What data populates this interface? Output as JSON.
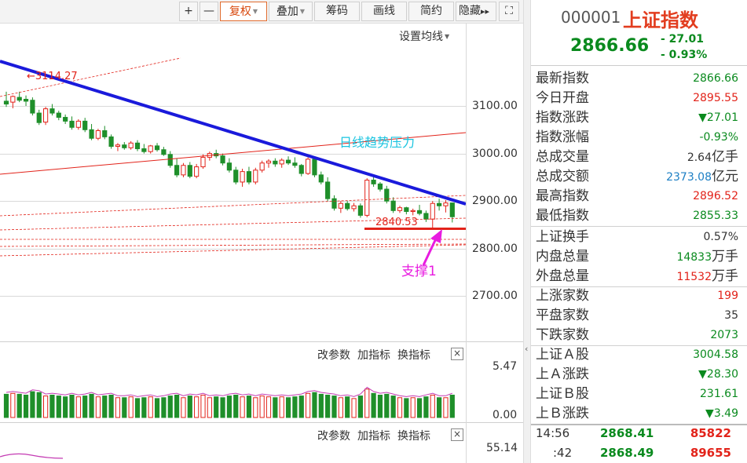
{
  "toolbar": {
    "zoom_in": "+",
    "zoom_out": "—",
    "adjust": "复权",
    "overlay": "叠加",
    "chips": "筹码",
    "draw": "画线",
    "simple": "简约",
    "hide": "隐藏",
    "more": "▸▸",
    "fullscreen": "⛶"
  },
  "chart": {
    "settings_ma": "设置均线",
    "price_axis": [
      "3100.00",
      "3000.00",
      "2900.00",
      "2800.00",
      "2700.00"
    ],
    "volume_axis": [
      "5.47",
      "0.00"
    ],
    "indicator_axis": [
      "55.14"
    ],
    "annotations": {
      "high_label": "3114.27",
      "trend_label": "日线趋势压力",
      "support_value": "2840.53",
      "support_label": "支撑1"
    },
    "colors": {
      "up": "#e2231a",
      "down": "#1f8f2a",
      "trendline": "#1a1adb",
      "resistance": "#e2231a",
      "support_arrow": "#e81be0",
      "trend_text": "#19c4e0"
    },
    "sub_tools": {
      "params": "改参数",
      "add_indicator": "加指标",
      "switch_indicator": "换指标",
      "close": "×"
    }
  },
  "chart_data": {
    "type": "candlestick",
    "xlabel": "",
    "ylabel": "",
    "ylim": [
      2640,
      3200
    ],
    "support_level": 2840.53,
    "candles": [
      {
        "o": 3110,
        "h": 3130,
        "l": 3098,
        "c": 3104
      },
      {
        "o": 3108,
        "h": 3122,
        "l": 3095,
        "c": 3120
      },
      {
        "o": 3118,
        "h": 3130,
        "l": 3108,
        "c": 3112
      },
      {
        "o": 3114,
        "h": 3122,
        "l": 3100,
        "c": 3110
      },
      {
        "o": 3112,
        "h": 3118,
        "l": 3080,
        "c": 3085
      },
      {
        "o": 3085,
        "h": 3092,
        "l": 3060,
        "c": 3065
      },
      {
        "o": 3066,
        "h": 3098,
        "l": 3060,
        "c": 3094
      },
      {
        "o": 3094,
        "h": 3104,
        "l": 3080,
        "c": 3085
      },
      {
        "o": 3085,
        "h": 3090,
        "l": 3070,
        "c": 3076
      },
      {
        "o": 3076,
        "h": 3082,
        "l": 3062,
        "c": 3068
      },
      {
        "o": 3068,
        "h": 3078,
        "l": 3050,
        "c": 3055
      },
      {
        "o": 3055,
        "h": 3072,
        "l": 3050,
        "c": 3068
      },
      {
        "o": 3068,
        "h": 3075,
        "l": 3045,
        "c": 3050
      },
      {
        "o": 3050,
        "h": 3062,
        "l": 3028,
        "c": 3032
      },
      {
        "o": 3032,
        "h": 3052,
        "l": 3028,
        "c": 3048
      },
      {
        "o": 3048,
        "h": 3058,
        "l": 3030,
        "c": 3035
      },
      {
        "o": 3035,
        "h": 3040,
        "l": 3010,
        "c": 3015
      },
      {
        "o": 3015,
        "h": 3022,
        "l": 3005,
        "c": 3018
      },
      {
        "o": 3018,
        "h": 3024,
        "l": 3008,
        "c": 3012
      },
      {
        "o": 3012,
        "h": 3026,
        "l": 3008,
        "c": 3022
      },
      {
        "o": 3022,
        "h": 3028,
        "l": 3005,
        "c": 3010
      },
      {
        "o": 3010,
        "h": 3020,
        "l": 3000,
        "c": 3004
      },
      {
        "o": 3004,
        "h": 3018,
        "l": 3000,
        "c": 3016
      },
      {
        "o": 3016,
        "h": 3022,
        "l": 3004,
        "c": 3008
      },
      {
        "o": 3008,
        "h": 3014,
        "l": 2995,
        "c": 2998
      },
      {
        "o": 2998,
        "h": 3005,
        "l": 2970,
        "c": 2975
      },
      {
        "o": 2975,
        "h": 2990,
        "l": 2950,
        "c": 2955
      },
      {
        "o": 2955,
        "h": 2980,
        "l": 2950,
        "c": 2975
      },
      {
        "o": 2975,
        "h": 2982,
        "l": 2948,
        "c": 2952
      },
      {
        "o": 2952,
        "h": 2978,
        "l": 2948,
        "c": 2972
      },
      {
        "o": 2972,
        "h": 2998,
        "l": 2968,
        "c": 2992
      },
      {
        "o": 2992,
        "h": 3004,
        "l": 2985,
        "c": 3000
      },
      {
        "o": 3000,
        "h": 3008,
        "l": 2990,
        "c": 2995
      },
      {
        "o": 2995,
        "h": 3000,
        "l": 2975,
        "c": 2980
      },
      {
        "o": 2980,
        "h": 2990,
        "l": 2960,
        "c": 2965
      },
      {
        "o": 2965,
        "h": 2972,
        "l": 2935,
        "c": 2940
      },
      {
        "o": 2940,
        "h": 2968,
        "l": 2930,
        "c": 2962
      },
      {
        "o": 2962,
        "h": 2972,
        "l": 2935,
        "c": 2940
      },
      {
        "o": 2940,
        "h": 2970,
        "l": 2935,
        "c": 2965
      },
      {
        "o": 2965,
        "h": 2985,
        "l": 2960,
        "c": 2980
      },
      {
        "o": 2980,
        "h": 2988,
        "l": 2970,
        "c": 2984
      },
      {
        "o": 2984,
        "h": 2990,
        "l": 2972,
        "c": 2978
      },
      {
        "o": 2978,
        "h": 2990,
        "l": 2970,
        "c": 2986
      },
      {
        "o": 2986,
        "h": 2994,
        "l": 2976,
        "c": 2980
      },
      {
        "o": 2980,
        "h": 2992,
        "l": 2970,
        "c": 2975
      },
      {
        "o": 2975,
        "h": 2978,
        "l": 2952,
        "c": 2958
      },
      {
        "o": 2958,
        "h": 2992,
        "l": 2955,
        "c": 2988
      },
      {
        "o": 2988,
        "h": 2994,
        "l": 2950,
        "c": 2955
      },
      {
        "o": 2955,
        "h": 2962,
        "l": 2935,
        "c": 2940
      },
      {
        "o": 2940,
        "h": 2950,
        "l": 2900,
        "c": 2905
      },
      {
        "o": 2905,
        "h": 2912,
        "l": 2880,
        "c": 2885
      },
      {
        "o": 2885,
        "h": 2900,
        "l": 2875,
        "c": 2895
      },
      {
        "o": 2895,
        "h": 2900,
        "l": 2880,
        "c": 2884
      },
      {
        "o": 2884,
        "h": 2896,
        "l": 2878,
        "c": 2890
      },
      {
        "o": 2890,
        "h": 2895,
        "l": 2865,
        "c": 2870
      },
      {
        "o": 2870,
        "h": 2948,
        "l": 2866,
        "c": 2944
      },
      {
        "o": 2944,
        "h": 2952,
        "l": 2930,
        "c": 2936
      },
      {
        "o": 2936,
        "h": 2940,
        "l": 2920,
        "c": 2925
      },
      {
        "o": 2925,
        "h": 2932,
        "l": 2895,
        "c": 2900
      },
      {
        "o": 2900,
        "h": 2908,
        "l": 2875,
        "c": 2880
      },
      {
        "o": 2880,
        "h": 2890,
        "l": 2875,
        "c": 2886
      },
      {
        "o": 2886,
        "h": 2888,
        "l": 2872,
        "c": 2878
      },
      {
        "o": 2878,
        "h": 2884,
        "l": 2870,
        "c": 2880
      },
      {
        "o": 2880,
        "h": 2892,
        "l": 2870,
        "c": 2874
      },
      {
        "o": 2874,
        "h": 2880,
        "l": 2856,
        "c": 2862
      },
      {
        "o": 2862,
        "h": 2900,
        "l": 2840,
        "c": 2895
      },
      {
        "o": 2895,
        "h": 2905,
        "l": 2880,
        "c": 2890
      },
      {
        "o": 2890,
        "h": 2902,
        "l": 2876,
        "c": 2896
      },
      {
        "o": 2896,
        "h": 2897,
        "l": 2855,
        "c": 2867
      }
    ],
    "volume": {
      "ylim": [
        0,
        5.47
      ],
      "values": [
        2.7,
        2.8,
        2.7,
        2.6,
        3.0,
        2.9,
        2.5,
        2.6,
        2.5,
        2.4,
        2.6,
        2.4,
        2.5,
        2.7,
        2.4,
        2.5,
        2.6,
        2.3,
        2.3,
        2.4,
        2.2,
        2.3,
        2.4,
        2.2,
        2.3,
        2.5,
        2.6,
        2.3,
        2.5,
        2.4,
        2.6,
        2.3,
        2.4,
        2.3,
        2.5,
        2.6,
        2.4,
        2.5,
        2.3,
        2.5,
        2.4,
        2.3,
        2.4,
        2.3,
        2.4,
        2.5,
        2.8,
        2.9,
        2.7,
        2.6,
        2.5,
        2.3,
        2.4,
        2.2,
        2.5,
        3.3,
        2.8,
        2.6,
        2.7,
        2.5,
        2.3,
        2.2,
        2.3,
        2.2,
        2.4,
        2.6,
        2.3,
        2.3,
        2.6
      ]
    }
  },
  "quote": {
    "code": "000001",
    "name": "上证指数",
    "price": "2866.66",
    "change": "- 27.01",
    "change_pct": "- 0.93%",
    "group1": [
      {
        "label": "最新指数",
        "value": "2866.66",
        "color": "green"
      },
      {
        "label": "今日开盘",
        "value": "2895.55",
        "color": "red"
      },
      {
        "label": "指数涨跌",
        "value": "▼27.01",
        "color": "green"
      },
      {
        "label": "指数涨幅",
        "value": "-0.93%",
        "color": "green"
      },
      {
        "label": "总成交量",
        "value": "2.64",
        "unit": "亿手",
        "color": "dark"
      },
      {
        "label": "总成交额",
        "value": "2373.08",
        "unit": "亿元",
        "color": "blue"
      },
      {
        "label": "最高指数",
        "value": "2896.52",
        "color": "red"
      },
      {
        "label": "最低指数",
        "value": "2855.33",
        "color": "green"
      }
    ],
    "group2": [
      {
        "label": "上证换手",
        "value": "0.57%",
        "color": "dark"
      },
      {
        "label": "内盘总量",
        "value": "14833",
        "unit": "万手",
        "color": "green"
      },
      {
        "label": "外盘总量",
        "value": "11532",
        "unit": "万手",
        "color": "red"
      }
    ],
    "group3": [
      {
        "label": "上涨家数",
        "value": "199",
        "color": "red"
      },
      {
        "label": "平盘家数",
        "value": "35",
        "color": "dark"
      },
      {
        "label": "下跌家数",
        "value": "2073",
        "color": "green"
      }
    ],
    "group4": [
      {
        "label": "上证Ａ股",
        "value": "3004.58",
        "color": "green"
      },
      {
        "label": "上Ａ涨跌",
        "value": "▼28.30",
        "color": "green"
      },
      {
        "label": "上证Ｂ股",
        "value": "231.61",
        "color": "green"
      },
      {
        "label": "上Ｂ涨跌",
        "value": "▼3.49",
        "color": "green"
      }
    ],
    "ticks": [
      {
        "time": "14:56",
        "price": "2868.41",
        "volume": "85822"
      },
      {
        "time": ":42",
        "price": "2868.49",
        "volume": "89655"
      }
    ]
  }
}
